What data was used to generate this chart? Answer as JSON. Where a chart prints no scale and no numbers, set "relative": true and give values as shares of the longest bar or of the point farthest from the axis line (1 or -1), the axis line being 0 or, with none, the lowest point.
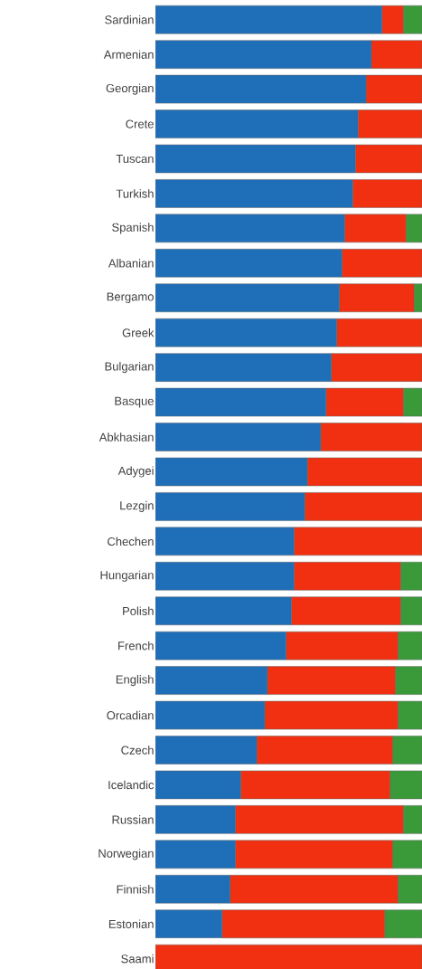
{
  "chart_data": {
    "type": "bar",
    "orientation": "horizontal",
    "stacked": true,
    "relative": true,
    "categories": [
      "Sardinian",
      "Armenian",
      "Georgian",
      "Crete",
      "Tuscan",
      "Turkish",
      "Spanish",
      "Albanian",
      "Bergamo",
      "Greek",
      "Bulgarian",
      "Basque",
      "Abkhasian",
      "Adygei",
      "Lezgin",
      "Chechen",
      "Hungarian",
      "Polish",
      "French",
      "English",
      "Orcadian",
      "Czech",
      "Icelandic",
      "Russian",
      "Norwegian",
      "Finnish",
      "Estonian",
      "Saami"
    ],
    "series": [
      {
        "color": "#1f6fb8",
        "values": [
          0.85,
          0.81,
          0.79,
          0.76,
          0.75,
          0.74,
          0.71,
          0.7,
          0.69,
          0.68,
          0.66,
          0.64,
          0.62,
          0.57,
          0.56,
          0.52,
          0.52,
          0.51,
          0.49,
          0.42,
          0.41,
          0.38,
          0.32,
          0.3,
          0.3,
          0.28,
          0.25,
          0
        ]
      },
      {
        "color": "#f03010",
        "values": [
          0.08,
          0.19,
          0.21,
          0.24,
          0.25,
          0.26,
          0.23,
          0.3,
          0.28,
          0.32,
          0.34,
          0.29,
          0.38,
          0.43,
          0.44,
          0.48,
          0.4,
          0.41,
          0.42,
          0.48,
          0.5,
          0.51,
          0.56,
          0.63,
          0.59,
          0.63,
          0.61,
          1
        ]
      },
      {
        "color": "#3a9a3a",
        "values": [
          0.07,
          0,
          0,
          0,
          0,
          0,
          0.06,
          0,
          0.03,
          0,
          0,
          0.07,
          0,
          0,
          0,
          0,
          0.08,
          0.08,
          0.09,
          0.1,
          0.09,
          0.11,
          0.12,
          0.07,
          0.11,
          0.09,
          0.14,
          0
        ]
      }
    ]
  }
}
